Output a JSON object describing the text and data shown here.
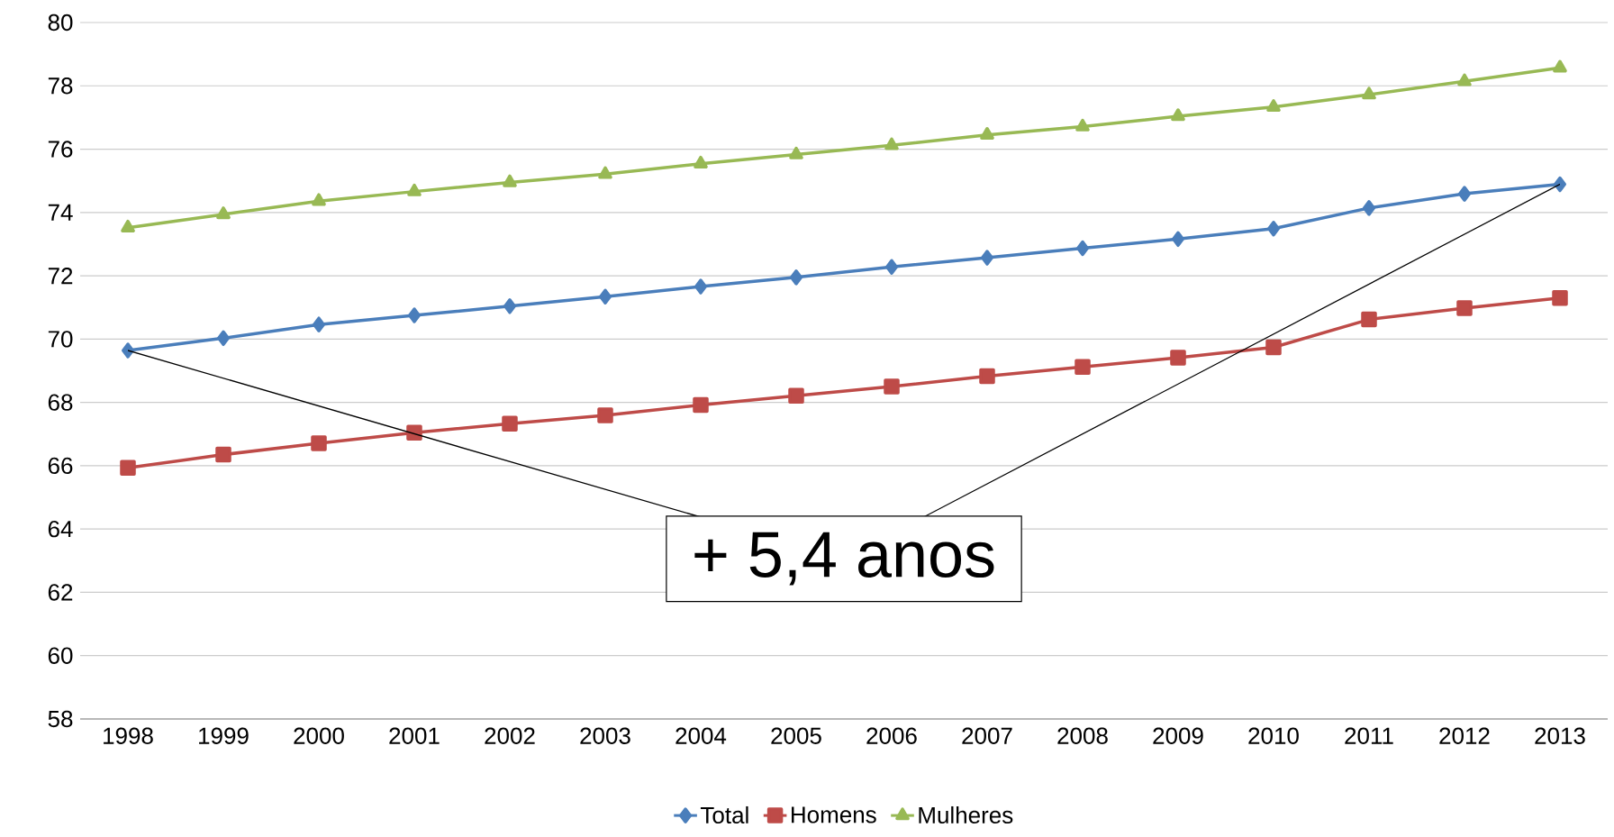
{
  "chart_data": {
    "type": "line",
    "categories": [
      "1998",
      "1999",
      "2000",
      "2001",
      "2002",
      "2003",
      "2004",
      "2005",
      "2006",
      "2007",
      "2008",
      "2009",
      "2010",
      "2011",
      "2012",
      "2013"
    ],
    "series": [
      {
        "name": "Total",
        "color": "#4a7ebb",
        "marker": "diamond",
        "values": [
          69.64,
          70.03,
          70.46,
          70.75,
          71.04,
          71.34,
          71.66,
          71.95,
          72.28,
          72.57,
          72.87,
          73.16,
          73.49,
          74.14,
          74.59,
          74.89
        ]
      },
      {
        "name": "Homens",
        "color": "#be4b48",
        "marker": "square",
        "values": [
          65.93,
          66.35,
          66.71,
          67.04,
          67.33,
          67.59,
          67.92,
          68.21,
          68.5,
          68.83,
          69.12,
          69.41,
          69.74,
          70.62,
          70.98,
          71.3
        ]
      },
      {
        "name": "Mulheres",
        "color": "#98b954",
        "marker": "triangle",
        "values": [
          73.52,
          73.94,
          74.36,
          74.66,
          74.95,
          75.21,
          75.54,
          75.83,
          76.12,
          76.45,
          76.71,
          77.04,
          77.33,
          77.72,
          78.14,
          78.57
        ]
      }
    ],
    "ylim": [
      58,
      80
    ],
    "yticks": [
      58,
      60,
      62,
      64,
      66,
      68,
      70,
      72,
      74,
      76,
      78,
      80
    ],
    "grid": "y",
    "legend": "bottom",
    "line_style": "solid",
    "annotations": [
      "+ 5,4 anos"
    ]
  }
}
